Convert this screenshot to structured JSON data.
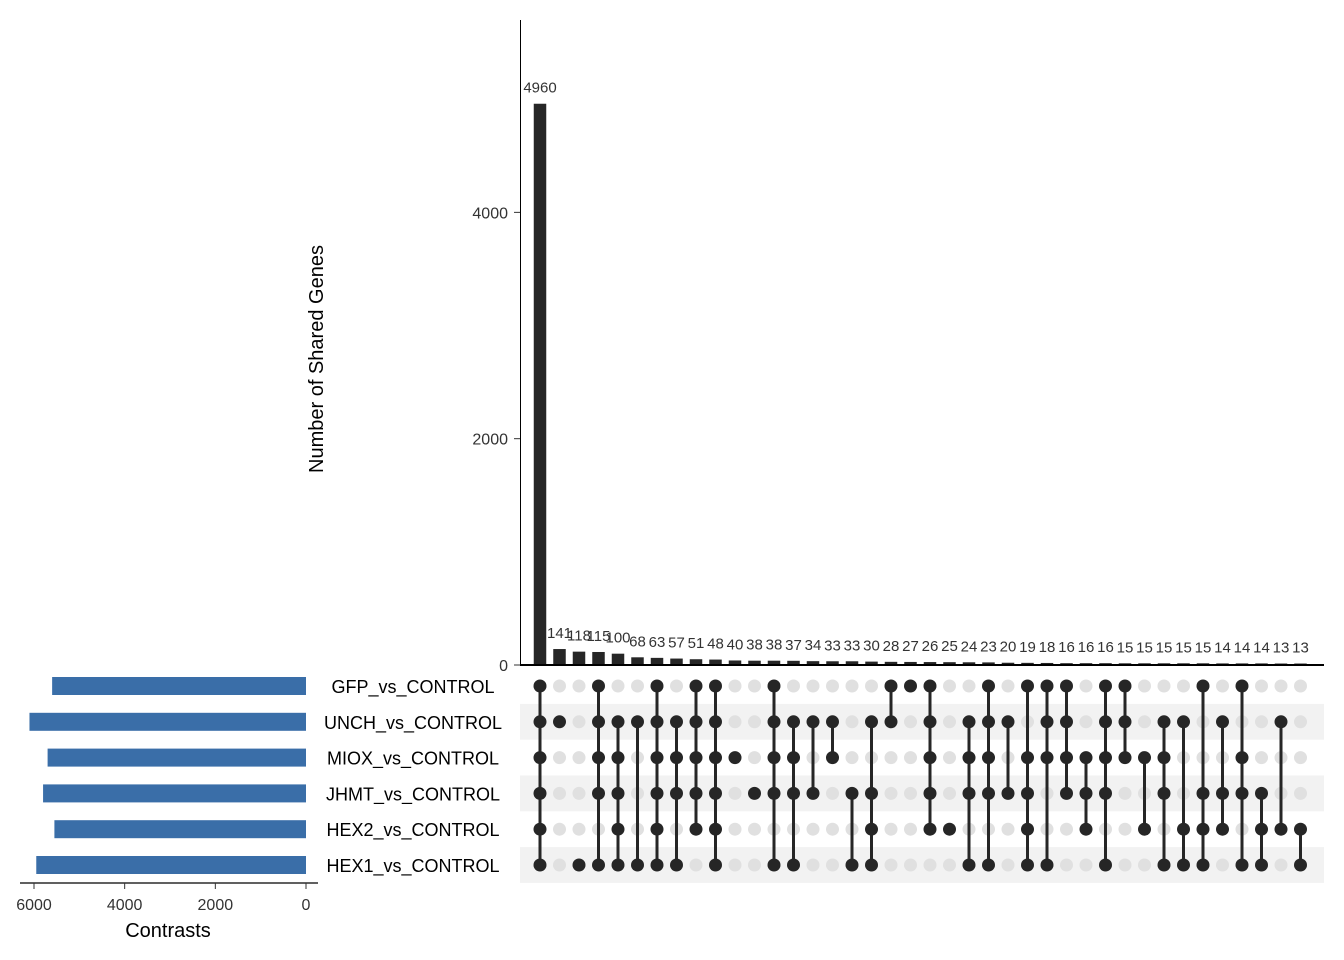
{
  "chart_data": {
    "type": "upset",
    "ylabel": "Number of Shared Genes",
    "yticks": [
      0,
      2000,
      4000
    ],
    "ylim": [
      0,
      5700
    ],
    "set_size_label": "Contrasts",
    "set_size_ticks": [
      6000,
      4000,
      2000,
      0
    ],
    "set_size_max": 6300,
    "sets": [
      "GFP_vs_CONTROL",
      "UNCH_vs_CONTROL",
      "MIOX_vs_CONTROL",
      "JHMT_vs_CONTROL",
      "HEX2_vs_CONTROL",
      "HEX1_vs_CONTROL"
    ],
    "set_sizes": [
      5600,
      6100,
      5700,
      5800,
      5550,
      5950
    ],
    "intersections": [
      {
        "value": 4960,
        "sets": [
          0,
          1,
          2,
          3,
          4,
          5
        ]
      },
      {
        "value": 141,
        "sets": [
          1
        ]
      },
      {
        "value": 118,
        "sets": [
          5
        ]
      },
      {
        "value": 115,
        "sets": [
          0,
          1,
          2,
          3,
          5
        ]
      },
      {
        "value": 100,
        "sets": [
          1,
          2,
          3,
          4,
          5
        ]
      },
      {
        "value": 68,
        "sets": [
          1,
          5
        ]
      },
      {
        "value": 63,
        "sets": [
          0,
          1,
          2,
          3,
          4,
          5
        ]
      },
      {
        "value": 57,
        "sets": [
          1,
          2,
          3,
          5
        ]
      },
      {
        "value": 51,
        "sets": [
          0,
          1,
          2,
          3,
          4
        ]
      },
      {
        "value": 48,
        "sets": [
          0,
          1,
          2,
          3,
          4,
          5
        ]
      },
      {
        "value": 40,
        "sets": [
          2
        ]
      },
      {
        "value": 38,
        "sets": [
          3
        ]
      },
      {
        "value": 38,
        "sets": [
          0,
          1,
          2,
          3,
          5
        ]
      },
      {
        "value": 37,
        "sets": [
          1,
          2,
          3,
          5
        ]
      },
      {
        "value": 34,
        "sets": [
          1,
          3
        ]
      },
      {
        "value": 33,
        "sets": [
          1,
          2
        ]
      },
      {
        "value": 33,
        "sets": [
          3,
          5
        ]
      },
      {
        "value": 30,
        "sets": [
          1,
          3,
          4,
          5
        ]
      },
      {
        "value": 28,
        "sets": [
          0,
          1
        ]
      },
      {
        "value": 27,
        "sets": [
          0
        ]
      },
      {
        "value": 26,
        "sets": [
          0,
          1,
          2,
          3,
          4
        ]
      },
      {
        "value": 25,
        "sets": [
          4
        ]
      },
      {
        "value": 24,
        "sets": [
          1,
          2,
          3,
          5
        ]
      },
      {
        "value": 23,
        "sets": [
          0,
          1,
          2,
          3,
          5
        ]
      },
      {
        "value": 20,
        "sets": [
          1,
          3
        ]
      },
      {
        "value": 19,
        "sets": [
          0,
          2,
          3,
          4,
          5
        ]
      },
      {
        "value": 18,
        "sets": [
          0,
          1,
          2,
          5
        ]
      },
      {
        "value": 16,
        "sets": [
          0,
          1,
          2,
          3
        ]
      },
      {
        "value": 16,
        "sets": [
          2,
          3,
          4
        ]
      },
      {
        "value": 16,
        "sets": [
          0,
          1,
          2,
          3,
          5
        ]
      },
      {
        "value": 15,
        "sets": [
          0,
          1,
          2
        ]
      },
      {
        "value": 15,
        "sets": [
          2,
          4
        ]
      },
      {
        "value": 15,
        "sets": [
          1,
          2,
          3,
          5
        ]
      },
      {
        "value": 15,
        "sets": [
          1,
          4,
          5
        ]
      },
      {
        "value": 15,
        "sets": [
          0,
          3,
          4,
          5
        ]
      },
      {
        "value": 14,
        "sets": [
          1,
          3,
          4
        ]
      },
      {
        "value": 14,
        "sets": [
          0,
          2,
          3,
          5
        ]
      },
      {
        "value": 14,
        "sets": [
          3,
          4,
          5
        ]
      },
      {
        "value": 13,
        "sets": [
          1,
          4
        ]
      },
      {
        "value": 13,
        "sets": [
          4,
          5
        ]
      }
    ]
  }
}
